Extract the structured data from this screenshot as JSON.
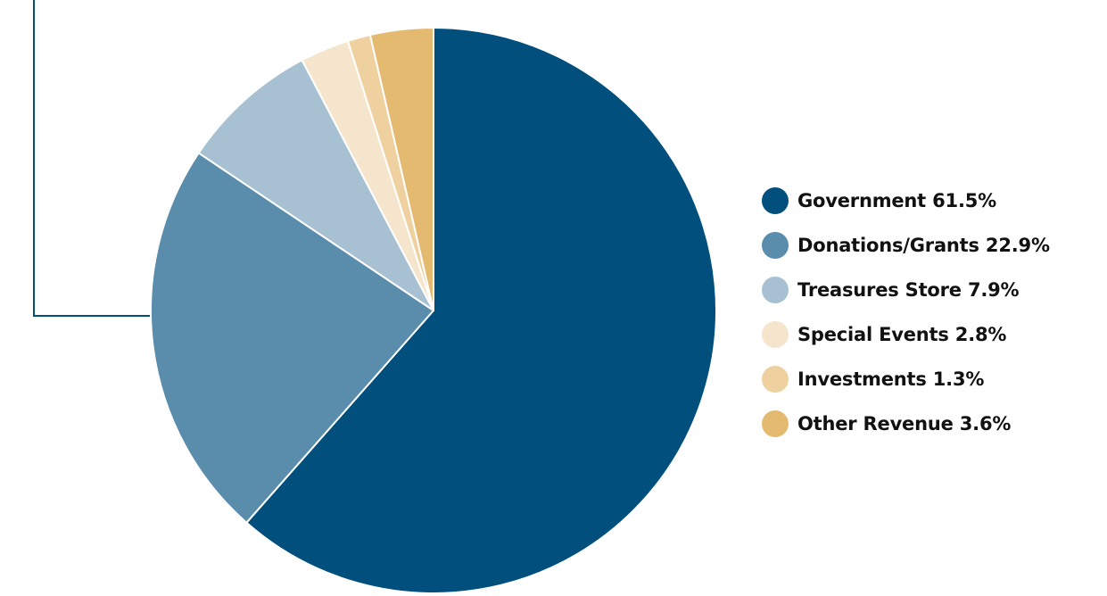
{
  "chart_data": {
    "type": "pie",
    "title": "",
    "categories": [
      "Government",
      "Donations/Grants",
      "Treasures Store",
      "Special Events",
      "Investments",
      "Other Revenue"
    ],
    "values": [
      61.5,
      22.9,
      7.9,
      2.8,
      1.3,
      3.6
    ],
    "labels": [
      "Government 61.5%",
      "Donations/Grants 22.9%",
      "Treasures Store 7.9%",
      "Special Events 2.8%",
      "Investments 1.3%",
      "Other Revenue 3.6%"
    ],
    "colors": [
      "#004F7C",
      "#5A8CAC",
      "#A7C1D3",
      "#F5E5CC",
      "#EFD19F",
      "#E4BA71"
    ],
    "start": "12 o'clock",
    "direction": "clockwise",
    "legend_position": "right",
    "slice_border_color": "#ffffff",
    "connector_color": "#004F7C"
  }
}
